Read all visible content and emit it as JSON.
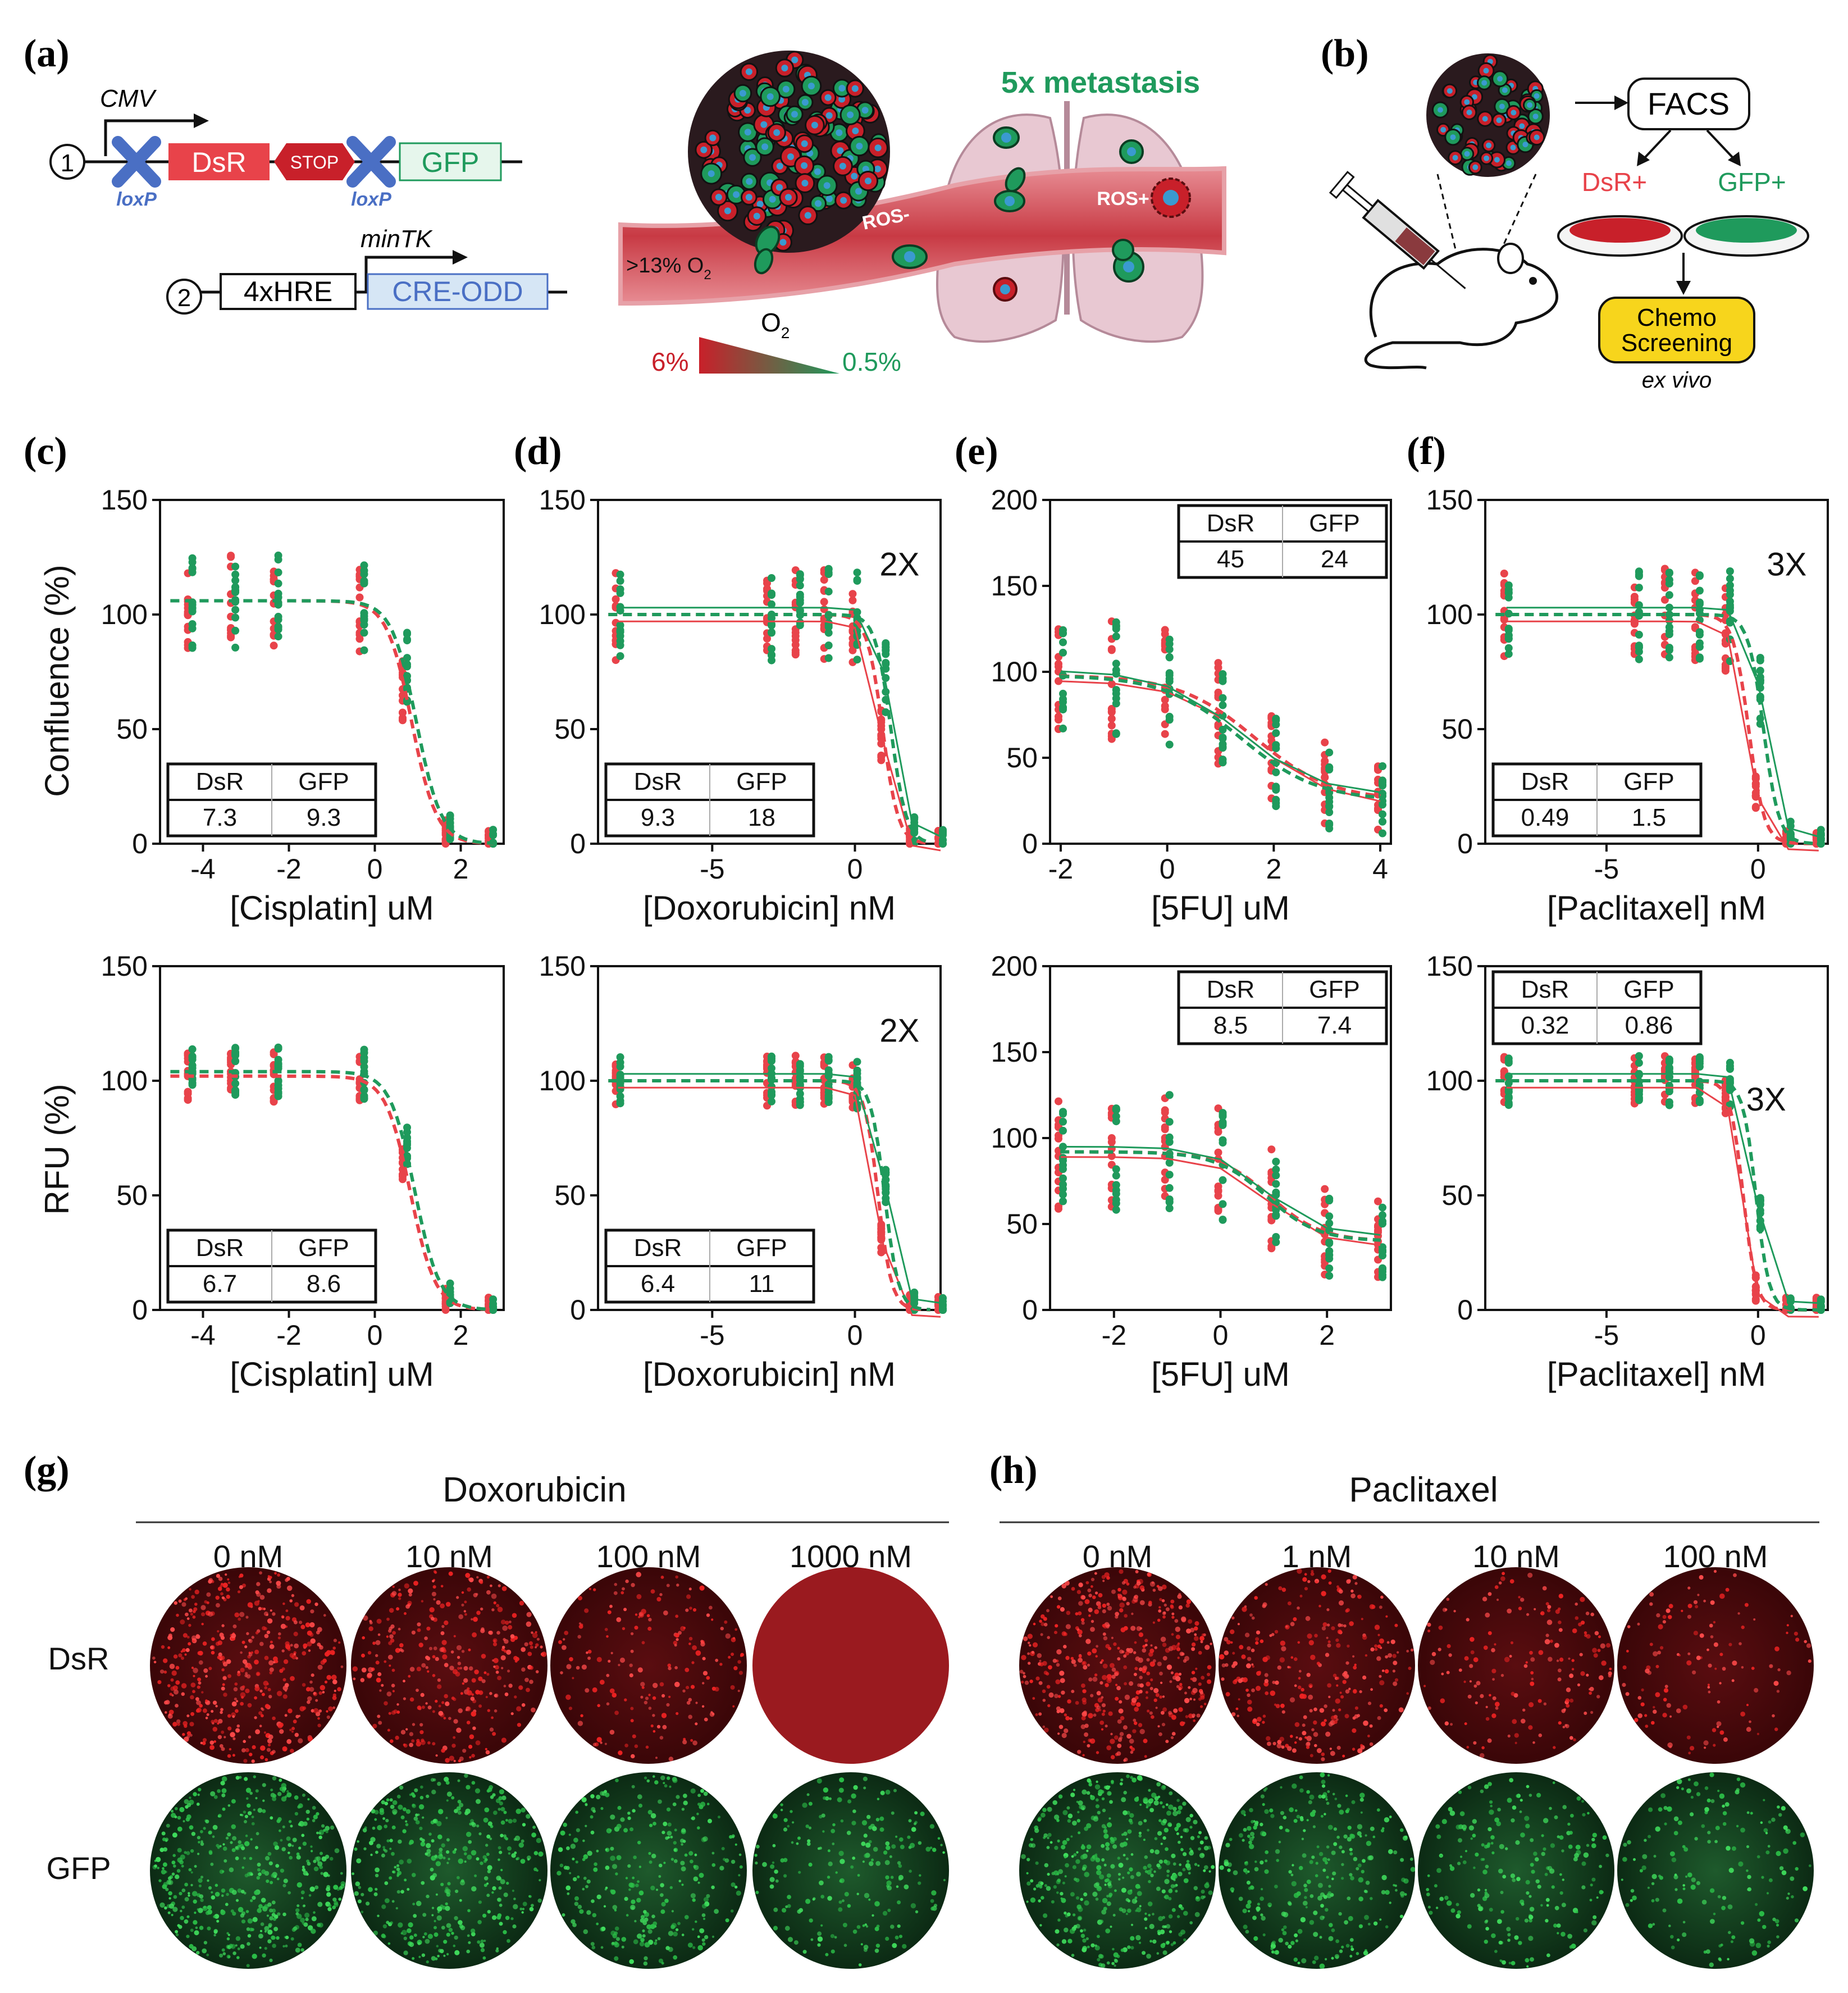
{
  "colors": {
    "dsr": "#e8434a",
    "gfp": "#1f9a5c",
    "dsr_dark": "#c8202a",
    "blue": "#4a6fc4",
    "lightblue": "#d6e6f5",
    "gfp_box": "#e6f6ec"
  },
  "panel_labels": {
    "a": "(a)",
    "b": "(b)",
    "c": "(c)",
    "d": "(d)",
    "e": "(e)",
    "f": "(f)",
    "g": "(g)",
    "h": "(h)"
  },
  "schematic_a": {
    "cmv": "CMV",
    "n1": "1",
    "loxp_left": "loxP",
    "dsr": "DsR",
    "stop": "STOP",
    "loxp_right": "loxP",
    "gfp": "GFP",
    "mintk": "minTK",
    "n2": "2",
    "hre": "4xHRE",
    "creodd": "CRE-ODD",
    "metastasis": "5x metastasis",
    "o2_high": ">13% O",
    "o2_high_sub": "2",
    "ros_minus": "ROS-",
    "ros_plus": "ROS+",
    "o2": "O",
    "o2_sub": "2",
    "grad_left": "6%",
    "grad_right": "0.5%"
  },
  "schematic_b": {
    "facs": "FACS",
    "dsr_pos": "DsR+",
    "gfp_pos": "GFP+",
    "chemo_line1": "Chemo",
    "chemo_line2": "Screening",
    "ex_vivo": "ex vivo"
  },
  "y_titles": {
    "top": "Confluence (%)",
    "bottom": "RFU  (%)"
  },
  "chart_data": [
    {
      "type": "scatter",
      "id": "c-top",
      "panel": "c",
      "metric": "Confluence (%)",
      "xlabel": "[Cisplatin] uM",
      "xlim": [
        -5,
        3
      ],
      "xticks": [
        -4,
        -2,
        0,
        2
      ],
      "ylim": [
        0,
        150
      ],
      "yticks": [
        0,
        50,
        100,
        150
      ],
      "ec50_table": {
        "headers": [
          "DsR",
          "GFP"
        ],
        "values": [
          "7.3",
          "9.3"
        ]
      },
      "fold_label": "",
      "series": [
        {
          "name": "DsR",
          "top": 106,
          "bottom": 0,
          "ec50_log": 0.86,
          "hill": 1.5
        },
        {
          "name": "GFP",
          "top": 106,
          "bottom": 0,
          "ec50_log": 0.97,
          "hill": 1.5
        }
      ],
      "x_points": [
        -4.3,
        -3.3,
        -2.3,
        -0.3,
        0.7,
        1.7,
        2.7
      ]
    },
    {
      "type": "scatter",
      "id": "d-top",
      "panel": "d",
      "metric": "Confluence (%)",
      "xlabel": "[Doxorubicin] nM",
      "xlim": [
        -9,
        3
      ],
      "xticks": [
        -5,
        0
      ],
      "ylim": [
        0,
        150
      ],
      "yticks": [
        0,
        50,
        100,
        150
      ],
      "ec50_table": {
        "headers": [
          "DsR",
          "GFP"
        ],
        "values": [
          "9.3",
          "18"
        ]
      },
      "fold_label": "2X",
      "series": [
        {
          "name": "DsR",
          "top": 100,
          "bottom": 0,
          "ec50_log": 0.97,
          "hill": 1.6
        },
        {
          "name": "GFP",
          "top": 100,
          "bottom": 0,
          "ec50_log": 1.26,
          "hill": 1.6
        }
      ],
      "x_points": [
        -8.3,
        -3,
        -2,
        -1,
        0,
        1,
        2,
        3
      ]
    },
    {
      "type": "scatter",
      "id": "e-top",
      "panel": "e",
      "metric": "Confluence (%)",
      "xlabel": "[5FU] uM",
      "xlim": [
        -2.2,
        4.2
      ],
      "xticks": [
        -2,
        0,
        2,
        4
      ],
      "ylim": [
        0,
        200
      ],
      "yticks": [
        0,
        50,
        100,
        150,
        200
      ],
      "ec50_table": {
        "headers": [
          "DsR",
          "GFP"
        ],
        "values": [
          "45",
          "24"
        ]
      },
      "fold_label": "",
      "series": [
        {
          "name": "DsR",
          "top": 98,
          "bottom": 25,
          "ec50_log": 1.65,
          "hill": 0.6
        },
        {
          "name": "GFP",
          "top": 98,
          "bottom": 25,
          "ec50_log": 1.38,
          "hill": 0.6
        }
      ],
      "x_points": [
        -2,
        -1,
        0,
        1,
        2,
        3,
        4
      ]
    },
    {
      "type": "scatter",
      "id": "f-top",
      "panel": "f",
      "metric": "Confluence (%)",
      "xlabel": "[Paclitaxel] nM",
      "xlim": [
        -9,
        2.3
      ],
      "xticks": [
        -5,
        0
      ],
      "ylim": [
        0,
        150
      ],
      "yticks": [
        0,
        50,
        100,
        150
      ],
      "ec50_table": {
        "headers": [
          "DsR",
          "GFP"
        ],
        "values": [
          "0.49",
          "1.5"
        ]
      },
      "fold_label": "3X",
      "series": [
        {
          "name": "DsR",
          "top": 100,
          "bottom": 0,
          "ec50_log": -0.31,
          "hill": 1.7
        },
        {
          "name": "GFP",
          "top": 100,
          "bottom": 0,
          "ec50_log": 0.18,
          "hill": 1.7
        }
      ],
      "x_points": [
        -8.3,
        -4,
        -3,
        -2,
        -1,
        0,
        1,
        2
      ]
    },
    {
      "type": "scatter",
      "id": "c-bot",
      "panel": "c",
      "metric": "RFU  (%)",
      "xlabel": "[Cisplatin] uM",
      "xlim": [
        -5,
        3
      ],
      "xticks": [
        -4,
        -2,
        0,
        2
      ],
      "ylim": [
        0,
        150
      ],
      "yticks": [
        0,
        50,
        100,
        150
      ],
      "ec50_table": {
        "headers": [
          "DsR",
          "GFP"
        ],
        "values": [
          "6.7",
          "8.6"
        ]
      },
      "fold_label": "",
      "series": [
        {
          "name": "DsR",
          "top": 102,
          "bottom": 0,
          "ec50_log": 0.83,
          "hill": 1.5
        },
        {
          "name": "GFP",
          "top": 104,
          "bottom": 0,
          "ec50_log": 0.93,
          "hill": 1.5
        }
      ],
      "x_points": [
        -4.3,
        -3.3,
        -2.3,
        -0.3,
        0.7,
        1.7,
        2.7
      ]
    },
    {
      "type": "scatter",
      "id": "d-bot",
      "panel": "d",
      "metric": "RFU  (%)",
      "xlabel": "[Doxorubicin] nM",
      "xlim": [
        -9,
        3
      ],
      "xticks": [
        -5,
        0
      ],
      "ylim": [
        0,
        150
      ],
      "yticks": [
        0,
        50,
        100,
        150
      ],
      "ec50_table": {
        "headers": [
          "DsR",
          "GFP"
        ],
        "values": [
          "6.4",
          "11"
        ]
      },
      "fold_label": "2X",
      "series": [
        {
          "name": "DsR",
          "top": 100,
          "bottom": 0,
          "ec50_log": 0.81,
          "hill": 1.8
        },
        {
          "name": "GFP",
          "top": 100,
          "bottom": 0,
          "ec50_log": 1.04,
          "hill": 1.8
        }
      ],
      "x_points": [
        -8.3,
        -3,
        -2,
        -1,
        0,
        1,
        2,
        3
      ]
    },
    {
      "type": "scatter",
      "id": "e-bot",
      "panel": "e",
      "metric": "RFU  (%)",
      "xlabel": "[5FU] uM",
      "xlim": [
        -3.2,
        3.2
      ],
      "xticks": [
        -2,
        0,
        2
      ],
      "ylim": [
        0,
        200
      ],
      "yticks": [
        0,
        50,
        100,
        150,
        200
      ],
      "ec50_table": {
        "headers": [
          "DsR",
          "GFP"
        ],
        "values": [
          "8.5",
          "7.4"
        ]
      },
      "fold_label": "",
      "series": [
        {
          "name": "DsR",
          "top": 92,
          "bottom": 40,
          "ec50_log": 0.93,
          "hill": 0.9
        },
        {
          "name": "GFP",
          "top": 92,
          "bottom": 40,
          "ec50_log": 0.87,
          "hill": 0.9
        }
      ],
      "x_points": [
        -3,
        -2,
        -1,
        0,
        1,
        2,
        3
      ]
    },
    {
      "type": "scatter",
      "id": "f-bot",
      "panel": "f",
      "metric": "RFU  (%)",
      "xlabel": "[Paclitaxel] nM",
      "xlim": [
        -9,
        2.3
      ],
      "xticks": [
        -5,
        0
      ],
      "ylim": [
        0,
        150
      ],
      "yticks": [
        0,
        50,
        100,
        150
      ],
      "ec50_table": {
        "headers": [
          "DsR",
          "GFP"
        ],
        "values": [
          "0.32",
          "0.86"
        ]
      },
      "fold_label": "3X",
      "series": [
        {
          "name": "DsR",
          "top": 100,
          "bottom": 0,
          "ec50_log": -0.49,
          "hill": 2.0
        },
        {
          "name": "GFP",
          "top": 100,
          "bottom": 0,
          "ec50_log": -0.07,
          "hill": 2.0
        }
      ],
      "x_points": [
        -8.3,
        -4,
        -3,
        -2,
        -1,
        0,
        1,
        2
      ]
    }
  ],
  "images_g": {
    "title": "Doxorubicin",
    "doses": [
      "0 nM",
      "10 nM",
      "100 nM",
      "1000 nM"
    ],
    "rows": [
      "DsR",
      "GFP"
    ],
    "red_density": [
      1.0,
      0.7,
      0.35,
      0.0
    ],
    "green_density": [
      1.0,
      0.8,
      0.6,
      0.4
    ]
  },
  "images_h": {
    "title": "Paclitaxel",
    "doses": [
      "0 nM",
      "1 nM",
      "10 nM",
      "100 nM"
    ],
    "red_density": [
      1.0,
      0.6,
      0.3,
      0.2
    ],
    "green_density": [
      1.0,
      0.6,
      0.4,
      0.3
    ]
  }
}
